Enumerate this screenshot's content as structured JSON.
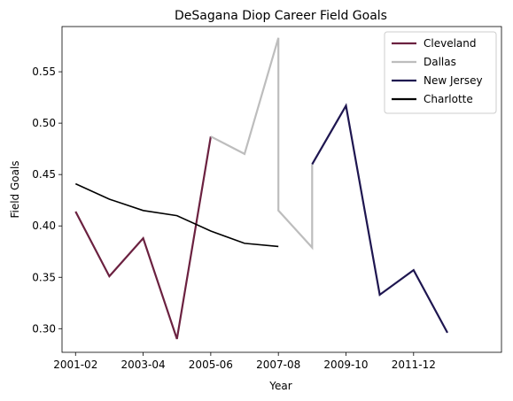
{
  "chart_data": {
    "type": "line",
    "title": "DeSagana Diop Career Field Goals",
    "xlabel": "Year",
    "ylabel": "Field Goals",
    "x_ticks": [
      "2001-02",
      "2003-04",
      "2005-06",
      "2007-08",
      "2009-10",
      "2011-12"
    ],
    "y_ticks": [
      "0.30",
      "0.35",
      "0.40",
      "0.45",
      "0.50",
      "0.55"
    ],
    "xlim": [
      2000.6,
      2013.6
    ],
    "ylim": [
      0.277,
      0.594
    ],
    "grid": false,
    "legend_position": "top-right",
    "series": [
      {
        "name": "Cleveland",
        "color": "#6b2140",
        "points": [
          [
            2001,
            0.414
          ],
          [
            2002,
            0.351
          ],
          [
            2003,
            0.388
          ],
          [
            2004,
            0.29
          ],
          [
            2005,
            0.487
          ]
        ]
      },
      {
        "name": "Dallas",
        "color": "#bdbdbd",
        "points": [
          [
            2005,
            0.487
          ],
          [
            2006,
            0.47
          ],
          [
            2007,
            0.583
          ],
          [
            2007,
            0.415
          ],
          [
            2008,
            0.379
          ],
          [
            2008,
            0.46
          ]
        ]
      },
      {
        "name": "New Jersey",
        "color": "#1e1650",
        "points": [
          [
            2008,
            0.46
          ],
          [
            2009,
            0.517
          ],
          [
            2010,
            0.333
          ],
          [
            2011,
            0.357
          ],
          [
            2012,
            0.296
          ]
        ]
      },
      {
        "name": "Charlotte",
        "color": "#000000",
        "points": [
          [
            2001,
            0.441
          ],
          [
            2002,
            0.426
          ],
          [
            2003,
            0.415
          ],
          [
            2004,
            0.41
          ],
          [
            2005,
            0.395
          ],
          [
            2006,
            0.383
          ],
          [
            2007,
            0.38
          ]
        ]
      }
    ]
  }
}
